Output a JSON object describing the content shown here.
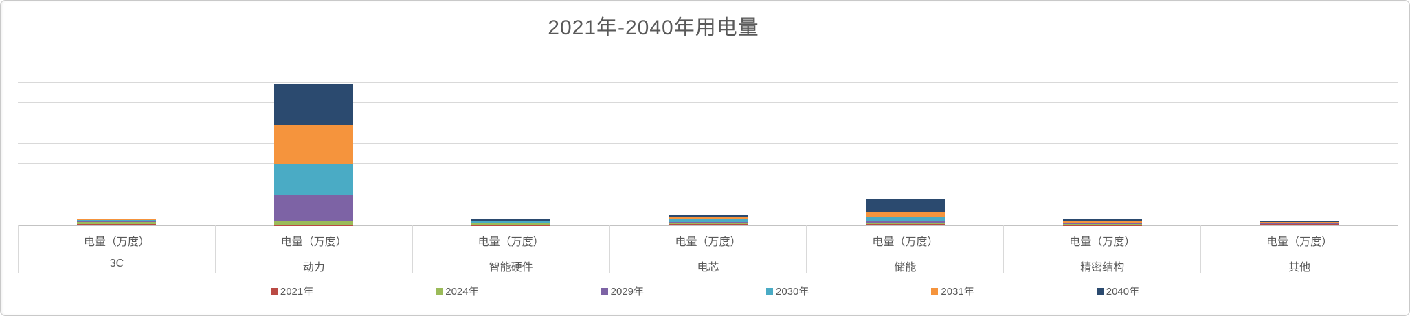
{
  "title": "2021年-2040年用电量",
  "palette": {
    "grid": "#d9d9d9",
    "axis": "#c3c3c3",
    "text": "#595959"
  },
  "chart_data": {
    "type": "bar",
    "stacked": true,
    "title": "2021年-2040年用电量",
    "xlabel": "",
    "ylabel": "",
    "value_axis_labels_visible": false,
    "ylim": [
      0,
      8
    ],
    "gridline_intervals": 8,
    "grid": true,
    "legend_position": "bottom",
    "category_sublabel": "电量（万度）",
    "categories": [
      "3C",
      "动力",
      "智能硬件",
      "电芯",
      "储能",
      "精密结构",
      "其他"
    ],
    "series": [
      {
        "name": "2021年",
        "color": "#ba4a44",
        "values": [
          0.02,
          0.01,
          0.01,
          0.03,
          0.03,
          0.01,
          0.03
        ]
      },
      {
        "name": "2024年",
        "color": "#9bbb59",
        "values": [
          0.13,
          0.17,
          0.07,
          0.07,
          0.05,
          0.01,
          0.02
        ]
      },
      {
        "name": "2029年",
        "color": "#7d63a5",
        "values": [
          0.02,
          1.32,
          0.02,
          0.03,
          0.12,
          0.08,
          0.02
        ]
      },
      {
        "name": "2030年",
        "color": "#4aabc5",
        "values": [
          0.08,
          1.52,
          0.08,
          0.14,
          0.2,
          0.02,
          0.02
        ]
      },
      {
        "name": "2031年",
        "color": "#f5943d",
        "values": [
          0.02,
          1.86,
          0.02,
          0.1,
          0.24,
          0.08,
          0.05
        ]
      },
      {
        "name": "2040年",
        "color": "#2b4a6f",
        "values": [
          0.05,
          2.03,
          0.1,
          0.14,
          0.6,
          0.07,
          0.03
        ]
      }
    ]
  }
}
